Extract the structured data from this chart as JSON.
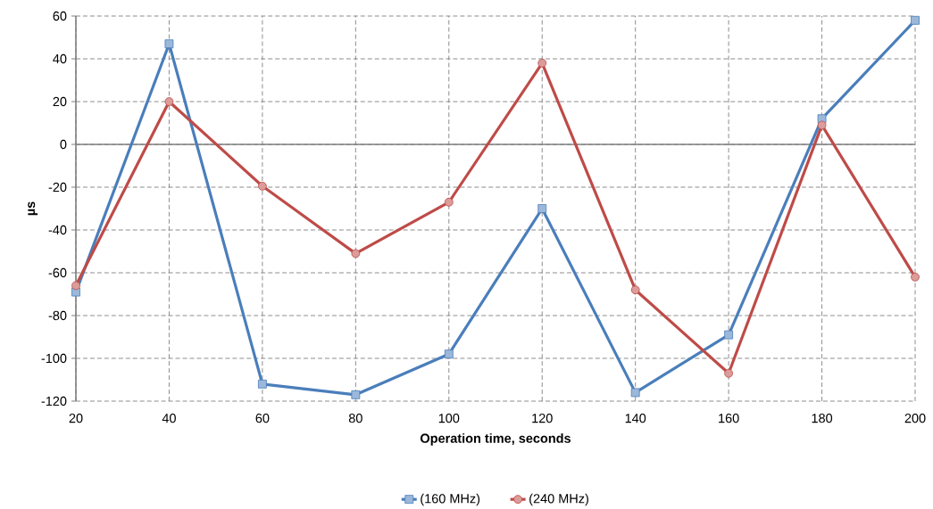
{
  "chart_data": {
    "type": "line",
    "xlabel": "Operation time, seconds",
    "ylabel": "µs",
    "x": [
      20,
      40,
      60,
      80,
      100,
      120,
      140,
      160,
      180,
      200
    ],
    "series": [
      {
        "name": "(160 MHz)",
        "color": "#4a7ebb",
        "marker": "square",
        "values": [
          -69,
          47,
          -112,
          -117,
          -98,
          -30,
          -116,
          -89,
          12,
          58
        ]
      },
      {
        "name": "(240 MHz)",
        "color": "#be4b48",
        "marker": "circle",
        "values": [
          -66,
          20,
          -19.5,
          -51,
          -27,
          38,
          -68,
          -107,
          9,
          -62
        ]
      }
    ],
    "xlim": [
      20,
      200
    ],
    "ylim": [
      -120,
      60
    ],
    "xticks": [
      20,
      40,
      60,
      80,
      100,
      120,
      140,
      160,
      180,
      200
    ],
    "yticks": [
      -120,
      -100,
      -80,
      -60,
      -40,
      -20,
      0,
      20,
      40,
      60
    ],
    "grid": true,
    "legend": "bottom",
    "line_style": "solid"
  }
}
